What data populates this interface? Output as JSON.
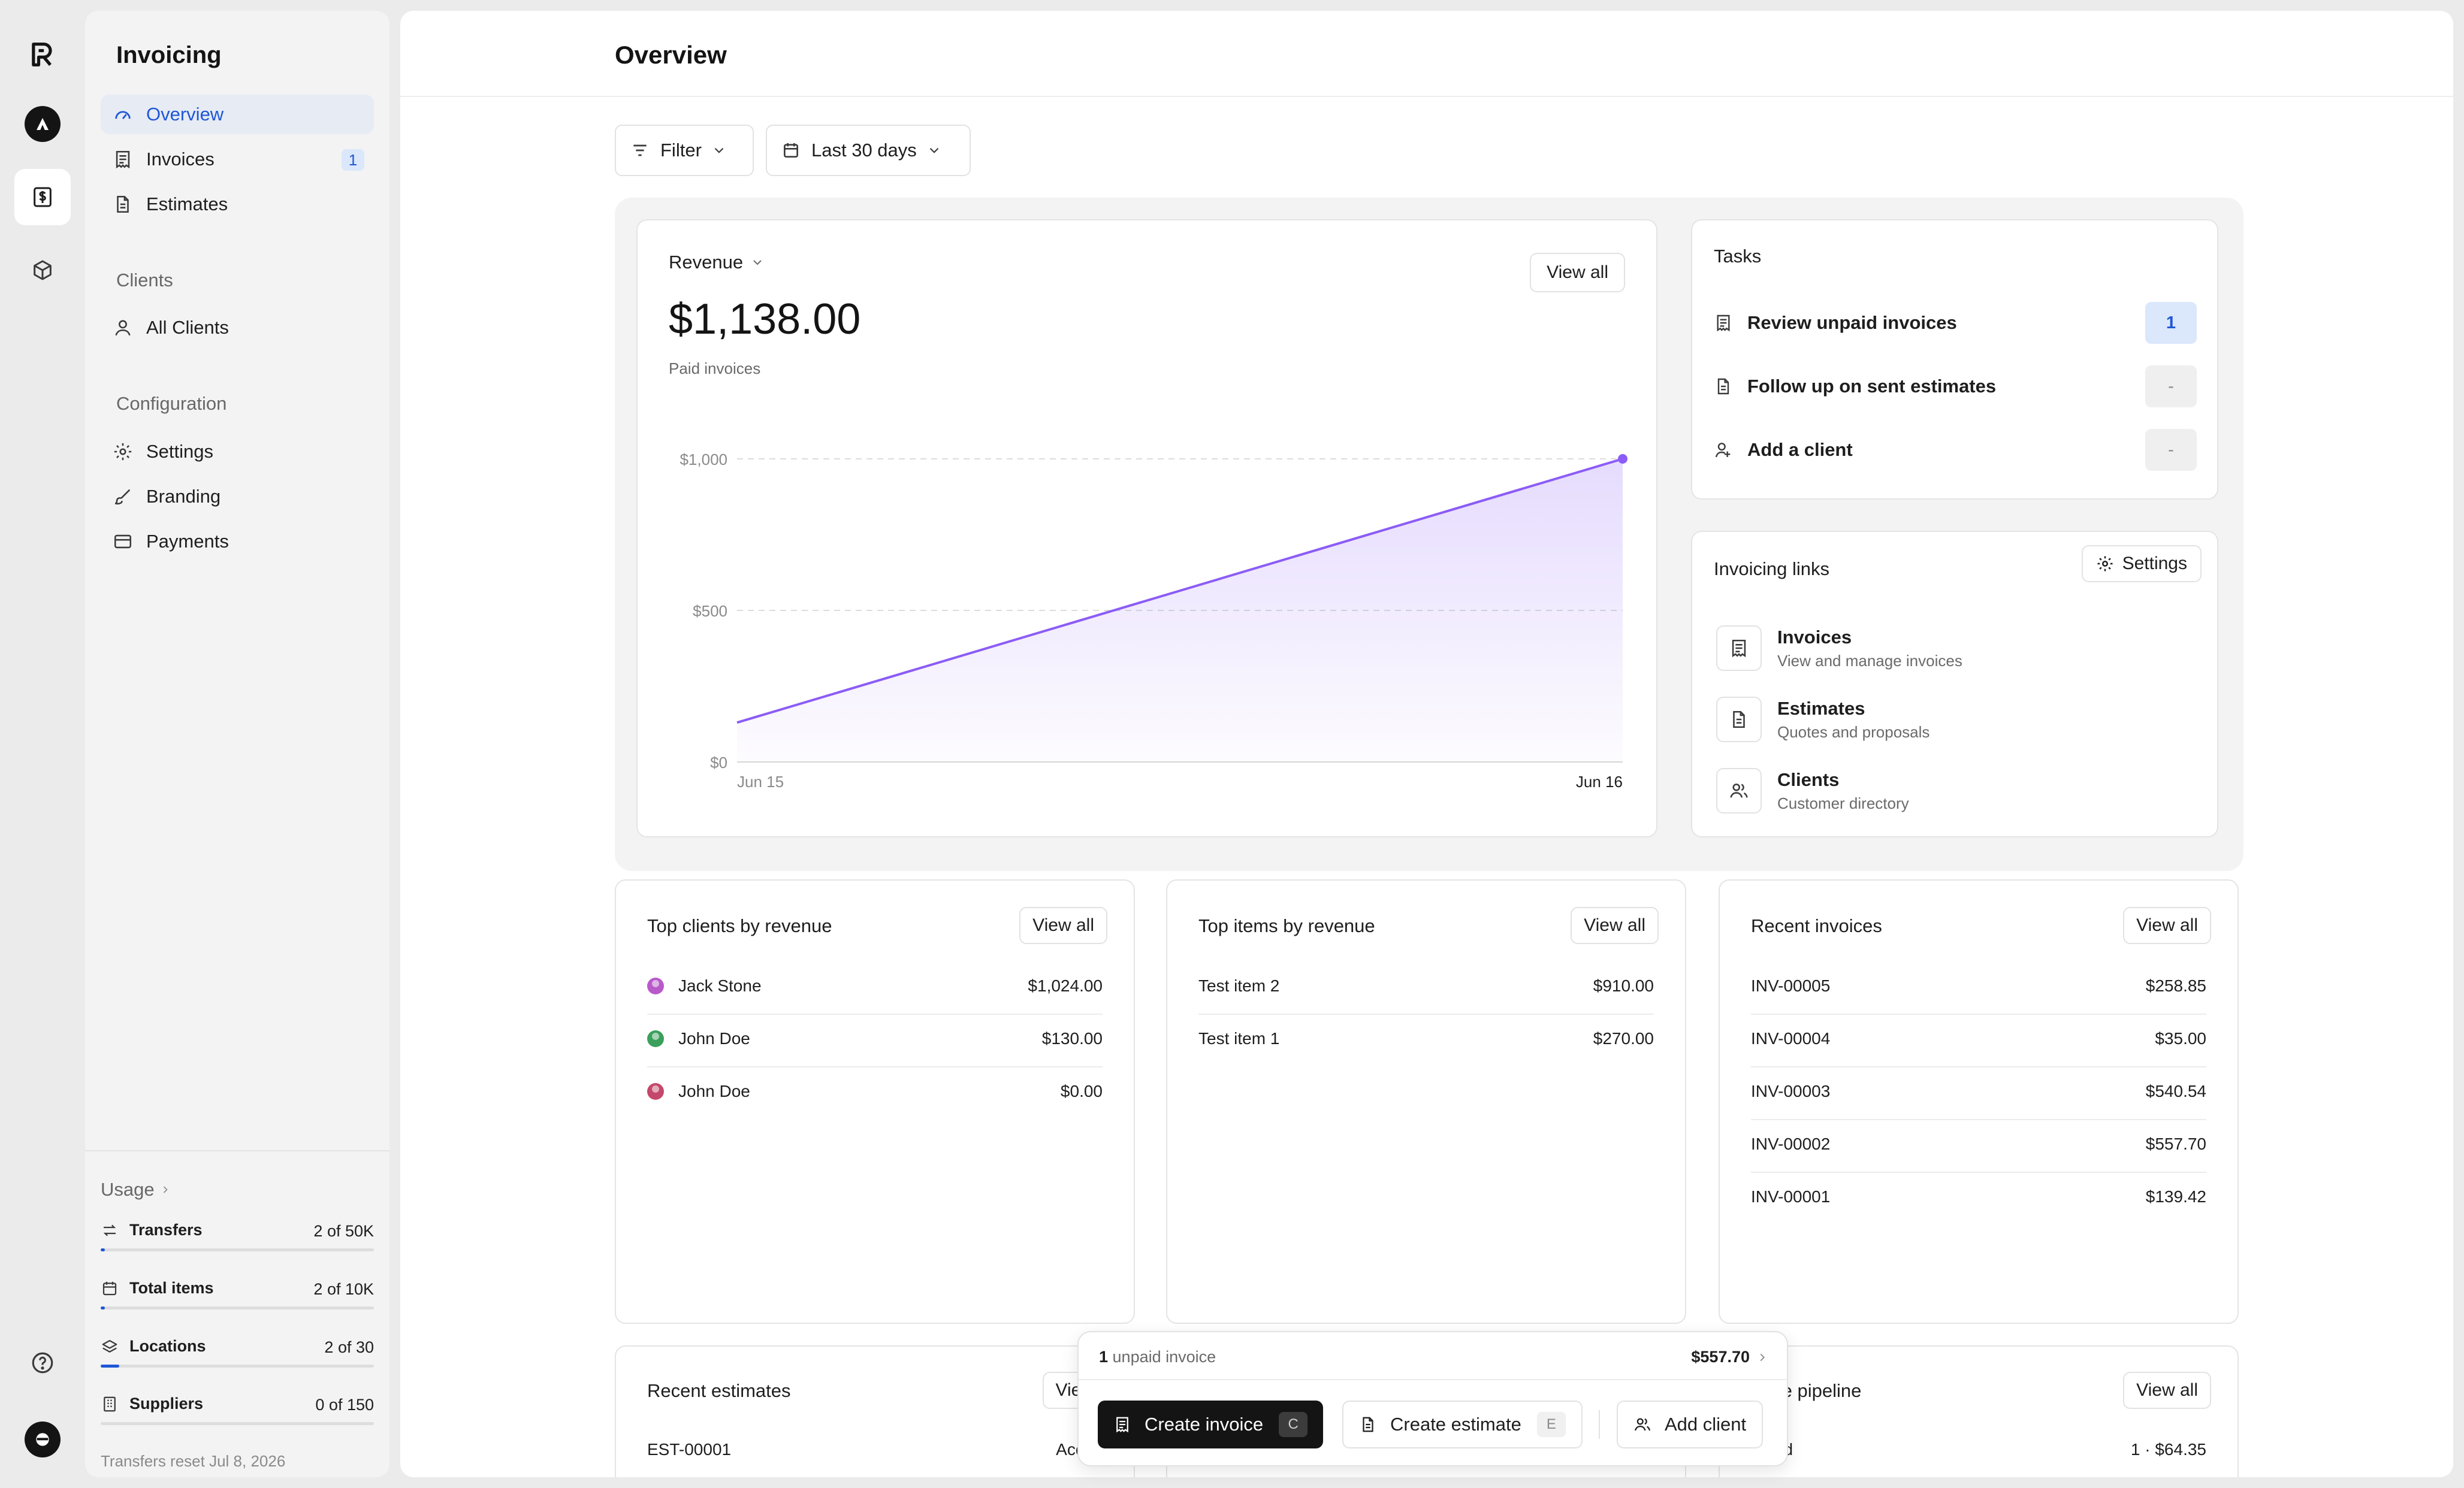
{
  "app": {
    "section_title": "Invoicing",
    "page_title": "Overview"
  },
  "rail": [
    {
      "name": "app-logo-icon"
    },
    {
      "name": "workspace-avatar-icon"
    },
    {
      "name": "invoicing-app-icon"
    },
    {
      "name": "inventory-box-icon"
    },
    {
      "name": "help-icon"
    },
    {
      "name": "user-avatar-icon"
    }
  ],
  "sidebar": {
    "nav": [
      {
        "label": "Overview",
        "icon": "gauge-icon",
        "active": true
      },
      {
        "label": "Invoices",
        "icon": "receipt-icon",
        "badge": "1"
      },
      {
        "label": "Estimates",
        "icon": "document-icon"
      }
    ],
    "clients_heading": "Clients",
    "clients": [
      {
        "label": "All Clients",
        "icon": "user-icon"
      }
    ],
    "config_heading": "Configuration",
    "config": [
      {
        "label": "Settings",
        "icon": "gear-icon"
      },
      {
        "label": "Branding",
        "icon": "brush-icon"
      },
      {
        "label": "Payments",
        "icon": "card-icon"
      }
    ],
    "usage": {
      "heading": "Usage",
      "rows": [
        {
          "label": "Transfers",
          "count": "2 of 50K",
          "fraction": 0.003
        },
        {
          "label": "Total items",
          "count": "2 of 10K",
          "fraction": 0.003
        },
        {
          "label": "Locations",
          "count": "2 of 30",
          "fraction": 0.067
        },
        {
          "label": "Suppliers",
          "count": "0 of 150",
          "fraction": 0
        }
      ],
      "reset_note": "Transfers reset Jul 8, 2026"
    }
  },
  "toolbar": {
    "filter_label": "Filter",
    "date_label": "Last 30 days"
  },
  "revenue": {
    "label": "Revenue",
    "amount": "$1,138.00",
    "sub": "Paid invoices",
    "view_all": "View all"
  },
  "chart_data": {
    "type": "area",
    "x": [
      "Jun 15",
      "Jun 16"
    ],
    "values": [
      130,
      1000
    ],
    "ylim": [
      0,
      1000
    ],
    "yticks": [
      "$0",
      "$500",
      "$1,000"
    ],
    "grid": true,
    "color": "#8b5cf6"
  },
  "tasks": {
    "title": "Tasks",
    "items": [
      {
        "label": "Review unpaid invoices",
        "count": "1",
        "icon": "receipt-icon",
        "highlight": true
      },
      {
        "label": "Follow up on sent estimates",
        "count": "-",
        "icon": "document-icon",
        "highlight": false
      },
      {
        "label": "Add a client",
        "count": "-",
        "icon": "user-plus-icon",
        "highlight": false
      }
    ]
  },
  "invoicing_links": {
    "title": "Invoicing links",
    "settings_label": "Settings",
    "items": [
      {
        "title": "Invoices",
        "desc": "View and manage invoices",
        "icon": "receipt-icon"
      },
      {
        "title": "Estimates",
        "desc": "Quotes and proposals",
        "icon": "document-icon"
      },
      {
        "title": "Clients",
        "desc": "Customer directory",
        "icon": "users-icon"
      }
    ]
  },
  "top_clients": {
    "title": "Top clients by revenue",
    "view_all": "View all",
    "rows": [
      {
        "name": "Jack Stone",
        "value": "$1,024.00",
        "color": "#b85ac9"
      },
      {
        "name": "John Doe",
        "value": "$130.00",
        "color": "#3aa05c"
      },
      {
        "name": "John Doe",
        "value": "$0.00",
        "color": "#c4486b"
      }
    ]
  },
  "top_items": {
    "title": "Top items by revenue",
    "view_all": "View all",
    "rows": [
      {
        "name": "Test item 2",
        "value": "$910.00"
      },
      {
        "name": "Test item 1",
        "value": "$270.00"
      }
    ]
  },
  "recent_invoices": {
    "title": "Recent invoices",
    "view_all": "View all",
    "rows": [
      {
        "name": "INV-00005",
        "value": "$258.85"
      },
      {
        "name": "INV-00004",
        "value": "$35.00"
      },
      {
        "name": "INV-00003",
        "value": "$540.54"
      },
      {
        "name": "INV-00002",
        "value": "$557.70"
      },
      {
        "name": "INV-00001",
        "value": "$139.42"
      }
    ]
  },
  "recent_estimates": {
    "title": "Recent estimates",
    "view_all": "View",
    "rows": [
      {
        "name": "EST-00001",
        "value": "Accep"
      }
    ]
  },
  "estimate_pipeline": {
    "title": "mate pipeline",
    "view_all": "View all",
    "rows": [
      {
        "name": "epted",
        "value": "1 · $64.35"
      }
    ]
  },
  "action_bar": {
    "unpaid_count": "1",
    "unpaid_text": " unpaid invoice",
    "unpaid_amount": "$557.70",
    "create_invoice": "Create invoice",
    "create_invoice_key": "C",
    "create_estimate": "Create estimate",
    "create_estimate_key": "E",
    "add_client": "Add client"
  }
}
